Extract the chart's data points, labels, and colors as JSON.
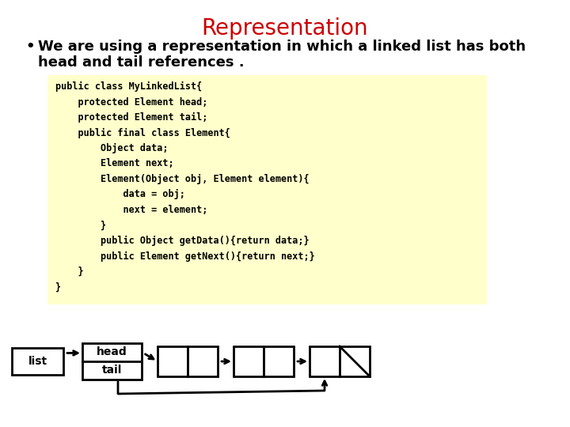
{
  "title": "Representation",
  "title_color": "#cc0000",
  "title_fontsize": 20,
  "bullet_text_line1": "We are using a representation in which a linked list has both",
  "bullet_text_line2": "head and tail references .",
  "bullet_fontsize": 13,
  "code_bg": "#ffffcc",
  "code_lines": [
    "public class MyLinkedList{",
    "    protected Element head;",
    "    protected Element tail;",
    "    public final class Element{",
    "        Object data;",
    "        Element next;",
    "        Element(Object obj, Element element){",
    "            data = obj;",
    "            next = element;",
    "        }",
    "        public Object getData(){return data;}",
    "        public Element getNext(){return next;}",
    "    }",
    "}"
  ],
  "code_fontsize": 8.5,
  "bg_color": "#ffffff"
}
